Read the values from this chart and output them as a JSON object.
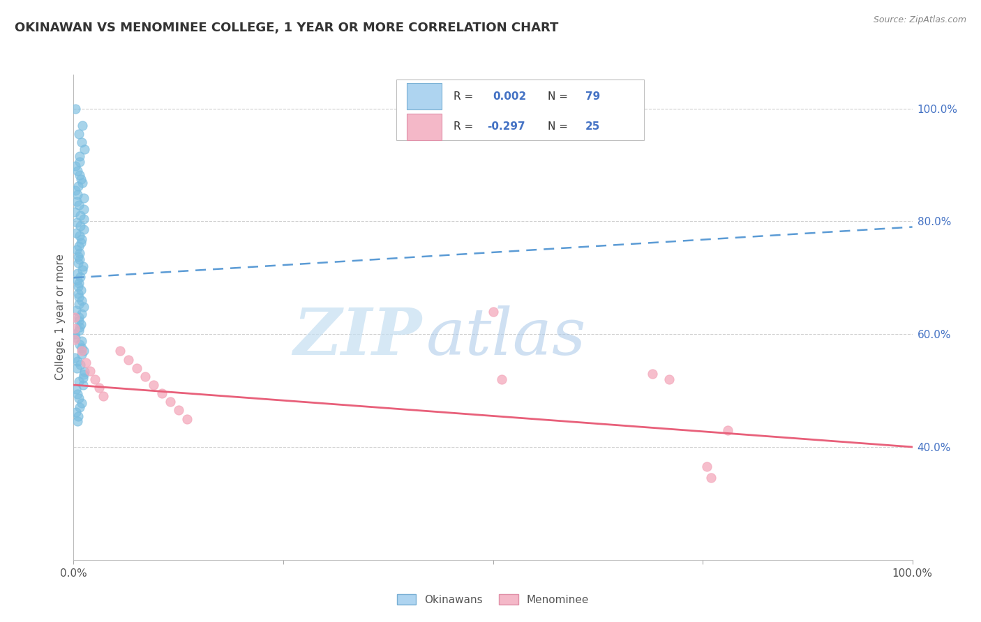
{
  "title": "OKINAWAN VS MENOMINEE COLLEGE, 1 YEAR OR MORE CORRELATION CHART",
  "source_text": "Source: ZipAtlas.com",
  "ylabel": "College, 1 year or more",
  "xlim": [
    0.0,
    1.0
  ],
  "ylim": [
    0.2,
    1.06
  ],
  "right_yticks": [
    0.4,
    0.6,
    0.8,
    1.0
  ],
  "right_yticklabels": [
    "40.0%",
    "60.0%",
    "80.0%",
    "100.0%"
  ],
  "okinawan_color": "#7abde0",
  "okinawan_edge": "#5a9dc8",
  "menominee_color": "#f4a8bb",
  "menominee_edge": "#e080a0",
  "legend_text_color": "#4472c4",
  "legend_R_ok": "R =  0.002",
  "legend_N_ok": "N = 79",
  "legend_R_me": "R = -0.297",
  "legend_N_me": "N = 25",
  "blue_trend_y0": 0.7,
  "blue_trend_y1": 0.79,
  "pink_trend_y0": 0.51,
  "pink_trend_y1": 0.4,
  "watermark_zip": "ZIP",
  "watermark_atlas": "atlas",
  "okinawan_x": [
    0.001,
    0.001,
    0.001,
    0.001,
    0.001,
    0.001,
    0.001,
    0.001,
    0.001,
    0.001,
    0.001,
    0.001,
    0.001,
    0.001,
    0.001,
    0.001,
    0.001,
    0.001,
    0.001,
    0.001,
    0.001,
    0.001,
    0.001,
    0.001,
    0.001,
    0.001,
    0.001,
    0.001,
    0.001,
    0.001,
    0.001,
    0.001,
    0.001,
    0.001,
    0.001,
    0.001,
    0.001,
    0.001,
    0.001,
    0.001,
    0.001,
    0.001,
    0.001,
    0.001,
    0.001,
    0.001,
    0.001,
    0.001,
    0.001,
    0.001,
    0.001,
    0.001,
    0.001,
    0.001,
    0.001,
    0.001,
    0.001,
    0.001,
    0.001,
    0.001,
    0.001,
    0.001,
    0.001,
    0.001,
    0.001,
    0.001,
    0.001,
    0.001,
    0.001,
    0.001,
    0.001,
    0.001,
    0.001,
    0.001,
    0.001,
    0.001,
    0.001,
    0.001,
    0.001
  ],
  "okinawan_y": [
    1.0,
    0.97,
    0.955,
    0.94,
    0.928,
    0.915,
    0.905,
    0.898,
    0.89,
    0.882,
    0.875,
    0.868,
    0.862,
    0.855,
    0.848,
    0.841,
    0.835,
    0.829,
    0.822,
    0.816,
    0.81,
    0.804,
    0.798,
    0.792,
    0.786,
    0.78,
    0.774,
    0.768,
    0.762,
    0.756,
    0.75,
    0.744,
    0.738,
    0.732,
    0.726,
    0.72,
    0.714,
    0.708,
    0.702,
    0.696,
    0.69,
    0.684,
    0.678,
    0.672,
    0.666,
    0.66,
    0.654,
    0.648,
    0.642,
    0.636,
    0.63,
    0.624,
    0.618,
    0.612,
    0.606,
    0.6,
    0.594,
    0.588,
    0.582,
    0.576,
    0.57,
    0.564,
    0.558,
    0.552,
    0.546,
    0.54,
    0.534,
    0.528,
    0.522,
    0.516,
    0.51,
    0.502,
    0.494,
    0.486,
    0.478,
    0.47,
    0.462,
    0.454,
    0.446
  ],
  "menominee_x": [
    0.001,
    0.001,
    0.001,
    0.01,
    0.015,
    0.02,
    0.025,
    0.03,
    0.035,
    0.055,
    0.065,
    0.075,
    0.085,
    0.095,
    0.105,
    0.115,
    0.125,
    0.135,
    0.5,
    0.51,
    0.69,
    0.71,
    0.755,
    0.76,
    0.78
  ],
  "menominee_y": [
    0.63,
    0.61,
    0.59,
    0.57,
    0.55,
    0.535,
    0.52,
    0.505,
    0.49,
    0.57,
    0.555,
    0.54,
    0.525,
    0.51,
    0.495,
    0.48,
    0.465,
    0.45,
    0.64,
    0.52,
    0.53,
    0.52,
    0.365,
    0.345,
    0.43
  ],
  "background_color": "#ffffff",
  "grid_color": "#d0d0d0"
}
